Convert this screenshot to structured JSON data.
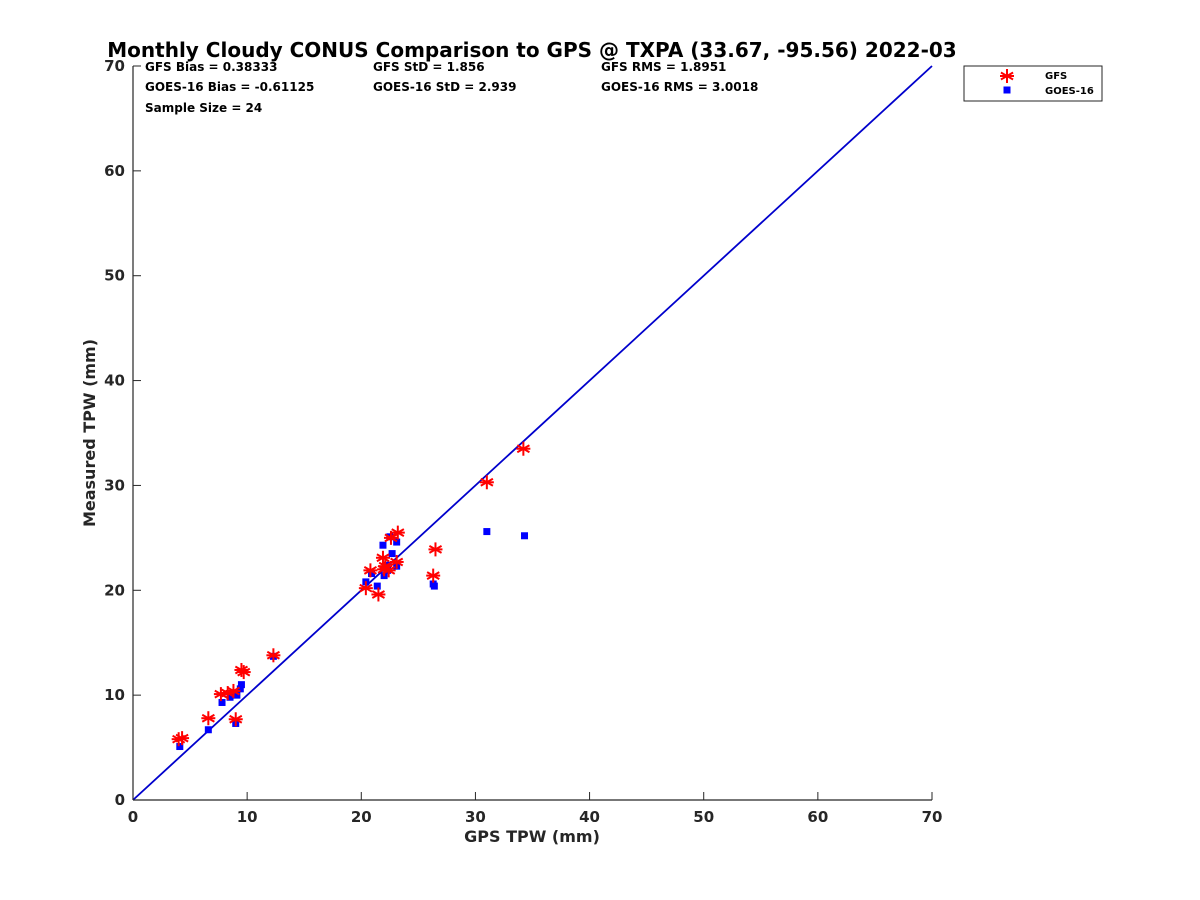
{
  "chart_data": {
    "type": "scatter",
    "title": "Monthly Cloudy CONUS Comparison to GPS @ TXPA (33.67, -95.56) 2022-03",
    "xlabel": "GPS TPW (mm)",
    "ylabel": "Measured TPW (mm)",
    "xlim": [
      0,
      70
    ],
    "ylim": [
      0,
      70
    ],
    "xticks": [
      "0",
      "10",
      "20",
      "30",
      "40",
      "50",
      "60",
      "70"
    ],
    "yticks": [
      "0",
      "10",
      "20",
      "30",
      "40",
      "50",
      "60",
      "70"
    ],
    "grid": false,
    "legend_position": "top-right-outside",
    "reference_line": {
      "x": [
        0,
        70
      ],
      "y": [
        0,
        70
      ],
      "color": "#0000cc"
    },
    "stats": {
      "gfs_bias": "GFS Bias = 0.38333",
      "goes_bias": "GOES-16 Bias = -0.61125",
      "sample_size": "Sample Size = 24",
      "gfs_std": "GFS StD = 1.856",
      "goes_std": "GOES-16 StD = 2.939",
      "gfs_rms": "GFS RMS = 1.8951",
      "goes_rms": "GOES-16 RMS = 3.0018"
    },
    "series": [
      {
        "name": "GFS",
        "marker": "asterisk",
        "color": "#ff0000",
        "points": [
          [
            4.0,
            5.8
          ],
          [
            4.3,
            5.9
          ],
          [
            6.6,
            7.8
          ],
          [
            7.7,
            10.1
          ],
          [
            8.3,
            10.2
          ],
          [
            8.8,
            10.4
          ],
          [
            9.0,
            7.7
          ],
          [
            9.5,
            12.4
          ],
          [
            9.7,
            12.2
          ],
          [
            12.3,
            13.8
          ],
          [
            20.4,
            20.2
          ],
          [
            20.8,
            21.9
          ],
          [
            21.5,
            19.6
          ],
          [
            21.9,
            23.1
          ],
          [
            22.1,
            22.3
          ],
          [
            22.4,
            21.9
          ],
          [
            22.6,
            25.0
          ],
          [
            23.1,
            22.7
          ],
          [
            23.2,
            25.5
          ],
          [
            26.3,
            21.4
          ],
          [
            26.5,
            23.9
          ],
          [
            31.0,
            30.3
          ],
          [
            34.2,
            33.5
          ],
          [
            22.0,
            22.0
          ]
        ]
      },
      {
        "name": "GOES-16",
        "marker": "square",
        "color": "#0000ff",
        "points": [
          [
            4.1,
            5.1
          ],
          [
            6.6,
            6.7
          ],
          [
            7.8,
            9.3
          ],
          [
            8.5,
            9.8
          ],
          [
            9.0,
            7.3
          ],
          [
            9.1,
            10.0
          ],
          [
            9.4,
            10.6
          ],
          [
            9.5,
            11.0
          ],
          [
            12.3,
            13.7
          ],
          [
            20.4,
            20.8
          ],
          [
            20.9,
            21.6
          ],
          [
            21.4,
            20.4
          ],
          [
            21.9,
            24.3
          ],
          [
            22.0,
            21.4
          ],
          [
            22.2,
            22.4
          ],
          [
            22.5,
            25.1
          ],
          [
            22.7,
            23.5
          ],
          [
            23.1,
            24.6
          ],
          [
            23.1,
            22.3
          ],
          [
            26.3,
            20.6
          ],
          [
            26.4,
            20.4
          ],
          [
            31.0,
            25.6
          ],
          [
            34.3,
            25.2
          ],
          [
            22.3,
            21.9
          ]
        ]
      }
    ]
  }
}
